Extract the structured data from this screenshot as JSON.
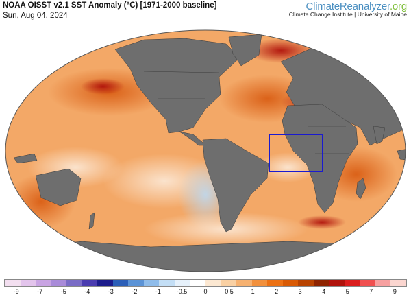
{
  "header": {
    "title": "NOAA OISST v2.1 SST Anomaly (°C) [1971-2000 baseline]",
    "date": "Sun, Aug 04, 2024"
  },
  "brand": {
    "name_part1": "Climate",
    "name_part2": "Reanalyzer",
    "name_part3": ".org",
    "subtitle": "Climate Change Institute | University of Maine"
  },
  "legend": {
    "colors": [
      "#f3dff0",
      "#e3c4ec",
      "#c9a4e3",
      "#a98bd9",
      "#7a6cc6",
      "#4a3cb0",
      "#1c1c8c",
      "#2c5fb8",
      "#5b93d6",
      "#8fbcea",
      "#c3def5",
      "#e6f1fb",
      "#ffffff",
      "#fce8d2",
      "#f9d0a3",
      "#f6b170",
      "#f2903c",
      "#ec7114",
      "#d95a04",
      "#b84300",
      "#8f2400",
      "#b0120b",
      "#db1d1d",
      "#f05050",
      "#f7a0a0",
      "#fbd6d0"
    ],
    "labels": [
      "-9",
      "-7",
      "-5",
      "-4",
      "-3",
      "-2",
      "-1",
      "-0.5",
      "0",
      "0.5",
      "1",
      "2",
      "3",
      "4",
      "5",
      "7",
      "9"
    ]
  },
  "map": {
    "land_color": "#6e6e6e",
    "ocean_base_color": "#f5b27a",
    "highlight_box_color": "#1a1ad0"
  }
}
